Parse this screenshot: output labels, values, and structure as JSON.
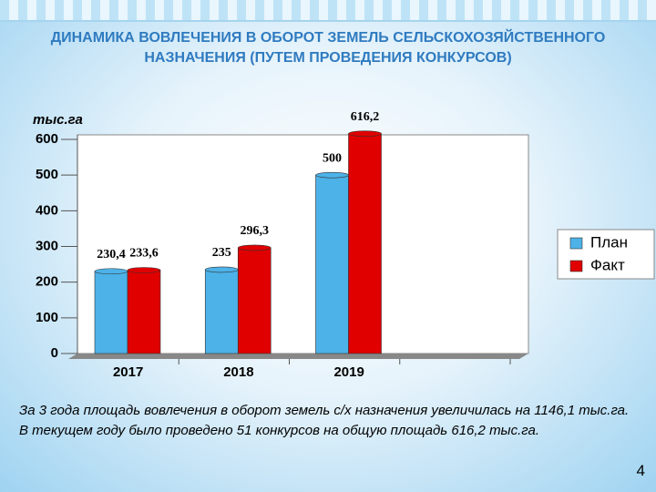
{
  "chart_data": {
    "type": "bar",
    "title": [
      "ДИНАМИКА ВОВЛЕЧЕНИЯ В ОБОРОТ ЗЕМЕЛЬ СЕЛЬСКОХОЗЯЙСТВЕННОГО",
      "НАЗНАЧЕНИЯ (ПУТЕМ ПРОВЕДЕНИЯ КОНКУРСОВ)"
    ],
    "y_label": "тыс.га",
    "categories": [
      "2017",
      "2018",
      "2019",
      null
    ],
    "series": [
      {
        "name": "План",
        "color": "#4db2e8",
        "values": [
          230.4,
          235,
          500,
          null
        ],
        "value_labels": [
          "230,4",
          "235",
          "500",
          null
        ]
      },
      {
        "name": "Факт",
        "color": "#e00000",
        "values": [
          233.6,
          296.3,
          616.2,
          null
        ],
        "value_labels": [
          "233,6",
          "296,3",
          "616,2",
          null
        ]
      }
    ],
    "ylim": [
      0,
      600
    ],
    "yticks": [
      0,
      100,
      200,
      300,
      400,
      500,
      600
    ],
    "grid": false,
    "legend": "right"
  },
  "notes": [
    "За 3 года площадь вовлечения в оборот земель с/х назначения увеличилась на 1146,1 тыс.га.",
    "В текущем году было проведено 51 конкурсов на общую площадь 616,2 тыс.га."
  ],
  "page_number": "4"
}
